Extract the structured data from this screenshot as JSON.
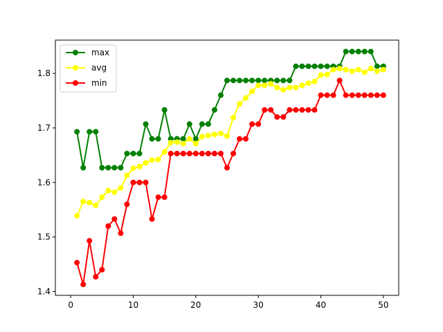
{
  "chart_data": {
    "type": "line",
    "title": "",
    "xlabel": "",
    "ylabel": "",
    "xlim": [
      -2.45,
      52.45
    ],
    "ylim": [
      1.393,
      1.861
    ],
    "xticks": [
      0,
      10,
      20,
      30,
      40,
      50
    ],
    "yticks": [
      1.4,
      1.5,
      1.6,
      1.7,
      1.8
    ],
    "ytick_labels": [
      "1.4",
      "1.5",
      "1.6",
      "1.7",
      "1.8"
    ],
    "grid": false,
    "legend_position": "top-left",
    "x": [
      1,
      2,
      3,
      4,
      5,
      6,
      7,
      8,
      9,
      10,
      11,
      12,
      13,
      14,
      15,
      16,
      17,
      18,
      19,
      20,
      21,
      22,
      23,
      24,
      25,
      26,
      27,
      28,
      29,
      30,
      31,
      32,
      33,
      34,
      35,
      36,
      37,
      38,
      39,
      40,
      41,
      42,
      43,
      44,
      45,
      46,
      47,
      48,
      49,
      50
    ],
    "series": [
      {
        "name": "max",
        "color": "#008000",
        "values": [
          1.693,
          1.627,
          1.693,
          1.693,
          1.627,
          1.627,
          1.627,
          1.627,
          1.653,
          1.653,
          1.653,
          1.707,
          1.68,
          1.68,
          1.733,
          1.68,
          1.68,
          1.68,
          1.707,
          1.68,
          1.707,
          1.707,
          1.733,
          1.76,
          1.787,
          1.787,
          1.787,
          1.787,
          1.787,
          1.787,
          1.787,
          1.787,
          1.787,
          1.787,
          1.787,
          1.813,
          1.813,
          1.813,
          1.813,
          1.813,
          1.813,
          1.813,
          1.813,
          1.84,
          1.84,
          1.84,
          1.84,
          1.84,
          1.813,
          1.813
        ]
      },
      {
        "name": "avg",
        "color": "#ffff00",
        "values": [
          1.539,
          1.565,
          1.563,
          1.558,
          1.573,
          1.585,
          1.582,
          1.59,
          1.613,
          1.626,
          1.629,
          1.636,
          1.641,
          1.642,
          1.656,
          1.673,
          1.674,
          1.671,
          1.68,
          1.671,
          1.684,
          1.686,
          1.688,
          1.69,
          1.685,
          1.719,
          1.744,
          1.755,
          1.767,
          1.778,
          1.778,
          1.781,
          1.774,
          1.77,
          1.774,
          1.774,
          1.778,
          1.782,
          1.785,
          1.797,
          1.798,
          1.807,
          1.809,
          1.807,
          1.804,
          1.807,
          1.802,
          1.809,
          1.804,
          1.807
        ]
      },
      {
        "name": "min",
        "color": "#ff0000",
        "values": [
          1.453,
          1.413,
          1.493,
          1.427,
          1.44,
          1.52,
          1.533,
          1.507,
          1.56,
          1.6,
          1.6,
          1.6,
          1.533,
          1.573,
          1.573,
          1.653,
          1.653,
          1.653,
          1.653,
          1.653,
          1.653,
          1.653,
          1.653,
          1.653,
          1.627,
          1.653,
          1.68,
          1.68,
          1.707,
          1.707,
          1.733,
          1.733,
          1.72,
          1.72,
          1.733,
          1.733,
          1.733,
          1.733,
          1.733,
          1.76,
          1.76,
          1.76,
          1.787,
          1.76,
          1.76,
          1.76,
          1.76,
          1.76,
          1.76,
          1.76
        ]
      }
    ]
  }
}
